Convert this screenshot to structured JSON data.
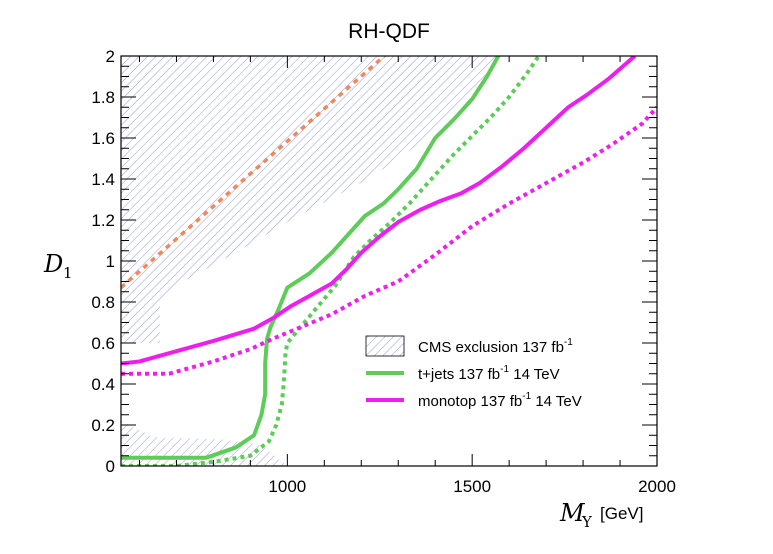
{
  "chart_data": {
    "type": "line",
    "title": "RH-QDF",
    "ylabel": {
      "symbol": "D",
      "subscript": "1"
    },
    "xlabel": {
      "symbol": "M",
      "subscript": "Y",
      "unit": "[GeV]"
    },
    "xlim": [
      550,
      2000
    ],
    "ylim": [
      0,
      2
    ],
    "x_ticks": [
      1000,
      1500,
      2000
    ],
    "y_ticks": [
      0,
      0.2,
      0.4,
      0.6,
      0.8,
      1,
      1.2,
      1.4,
      1.6,
      1.8,
      2
    ],
    "grid": false,
    "legend_position": "bottom-right",
    "legend": [
      {
        "key": "cms",
        "text": "CMS exclusion 137 fb",
        "sup": "-1",
        "after": ""
      },
      {
        "key": "tjets",
        "text": "t+jets 137 fb",
        "sup": "-1",
        "after": " 14 TeV"
      },
      {
        "key": "monotop",
        "text": "monotop 137 fb",
        "sup": "-1",
        "after": " 14 TeV"
      }
    ],
    "cms_exclusion_regions": [
      [
        [
          550,
          2.0
        ],
        [
          1575,
          2.0
        ],
        [
          1500,
          1.8
        ],
        [
          1380,
          1.6
        ],
        [
          1220,
          1.4
        ],
        [
          1010,
          1.2
        ],
        [
          870,
          1.05
        ],
        [
          720,
          0.9
        ],
        [
          655,
          0.8
        ],
        [
          655,
          0.6
        ],
        [
          550,
          0.6
        ]
      ],
      [
        [
          550,
          0.22
        ],
        [
          640,
          0.14
        ],
        [
          820,
          0.13
        ],
        [
          930,
          0.1
        ],
        [
          1000,
          0.0
        ],
        [
          550,
          0.0
        ]
      ]
    ],
    "series": [
      {
        "key": "orange",
        "color": "#f2885a",
        "style": "dashdot",
        "width": 3.5,
        "x": [
          550,
          1300
        ],
        "y": [
          0.87,
          2.06
        ]
      },
      {
        "key": "tjets",
        "color": "#5dcc58",
        "style": "solid",
        "width": 4,
        "x": [
          550,
          700,
          780,
          860,
          910,
          930,
          940,
          940,
          945,
          955,
          975,
          1000,
          1060,
          1120,
          1160,
          1210,
          1260,
          1300,
          1350,
          1400,
          1450,
          1500,
          1540,
          1580
        ],
        "y": [
          0.04,
          0.04,
          0.04,
          0.09,
          0.15,
          0.25,
          0.35,
          0.5,
          0.62,
          0.68,
          0.76,
          0.87,
          0.94,
          1.04,
          1.12,
          1.22,
          1.28,
          1.35,
          1.45,
          1.6,
          1.69,
          1.79,
          1.9,
          2.03
        ]
      },
      {
        "key": "tjets_dotted",
        "color": "#5dcc58",
        "style": "dotted",
        "width": 4,
        "x": [
          550,
          700,
          800,
          900,
          950,
          970,
          985,
          990,
          993,
          995,
          1000,
          1060,
          1130,
          1180,
          1230,
          1280,
          1330,
          1400,
          1450,
          1500,
          1550,
          1600,
          1650,
          1680
        ],
        "y": [
          0.0,
          0.0,
          0.02,
          0.05,
          0.12,
          0.2,
          0.3,
          0.4,
          0.48,
          0.55,
          0.6,
          0.73,
          0.88,
          1.02,
          1.11,
          1.19,
          1.28,
          1.42,
          1.52,
          1.61,
          1.7,
          1.8,
          1.92,
          2.0
        ]
      },
      {
        "key": "monotop",
        "color": "#ee1ef0",
        "style": "solid",
        "width": 4,
        "x": [
          550,
          600,
          700,
          800,
          910,
          960,
          1010,
          1060,
          1120,
          1160,
          1200,
          1250,
          1300,
          1360,
          1410,
          1470,
          1520,
          1580,
          1640,
          1700,
          1760,
          1810,
          1870,
          1940
        ],
        "y": [
          0.5,
          0.51,
          0.56,
          0.61,
          0.67,
          0.72,
          0.78,
          0.83,
          0.89,
          0.96,
          1.04,
          1.12,
          1.19,
          1.25,
          1.29,
          1.33,
          1.38,
          1.46,
          1.55,
          1.65,
          1.75,
          1.81,
          1.89,
          2.0
        ]
      },
      {
        "key": "monotop_dotted",
        "color": "#ee1ef0",
        "style": "dotted",
        "width": 4,
        "x": [
          550,
          620,
          680,
          800,
          900,
          960,
          1040,
          1120,
          1210,
          1300,
          1400,
          1500,
          1600,
          1700,
          1800,
          1880,
          1960,
          2000
        ],
        "y": [
          0.45,
          0.45,
          0.45,
          0.51,
          0.57,
          0.62,
          0.68,
          0.74,
          0.83,
          0.9,
          1.03,
          1.17,
          1.28,
          1.38,
          1.48,
          1.57,
          1.67,
          1.75
        ]
      }
    ]
  }
}
